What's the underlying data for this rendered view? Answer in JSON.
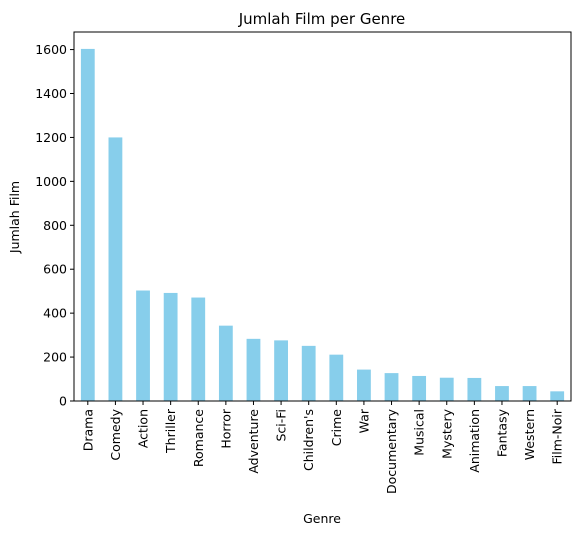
{
  "chart_data": {
    "type": "bar",
    "title": "Jumlah Film per Genre",
    "xlabel": "Genre",
    "ylabel": "Jumlah Film",
    "categories": [
      "Drama",
      "Comedy",
      "Action",
      "Thriller",
      "Romance",
      "Horror",
      "Adventure",
      "Sci-Fi",
      "Children's",
      "Crime",
      "War",
      "Documentary",
      "Musical",
      "Mystery",
      "Animation",
      "Fantasy",
      "Western",
      "Film-Noir"
    ],
    "values": [
      1603,
      1200,
      503,
      492,
      471,
      343,
      283,
      276,
      251,
      211,
      143,
      127,
      114,
      106,
      105,
      68,
      68,
      44
    ],
    "ylim": [
      0,
      1680
    ],
    "yticks": [
      0,
      200,
      400,
      600,
      800,
      1000,
      1200,
      1400,
      1600
    ],
    "grid": false,
    "bar_color": "#87ceeb"
  }
}
